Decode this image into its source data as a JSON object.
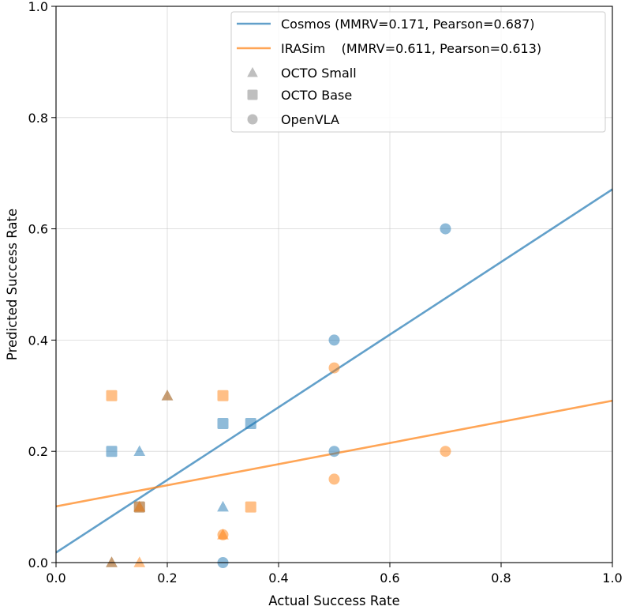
{
  "chart_data": {
    "type": "scatter",
    "title": "",
    "xlabel": "Actual Success Rate",
    "ylabel": "Predicted Success Rate",
    "xlim": [
      0.0,
      1.0
    ],
    "ylim": [
      0.0,
      1.0
    ],
    "xticks": [
      "0.0",
      "0.2",
      "0.4",
      "0.6",
      "0.8",
      "1.0"
    ],
    "yticks": [
      "0.0",
      "0.2",
      "0.4",
      "0.6",
      "0.8",
      "1.0"
    ],
    "grid": true,
    "legend_position": "top-right",
    "colors": {
      "cosmos": "#1f77b4",
      "irasim": "#ff7f0e",
      "marker_gray": "#7f7f7f"
    },
    "fit_lines": [
      {
        "name": "Cosmos",
        "label": "Cosmos (MMRV=0.171, Pearson=0.687)",
        "intercept": 0.018,
        "slope": 0.653
      },
      {
        "name": "IRASim",
        "label": "IRASim    (MMRV=0.611, Pearson=0.613)",
        "intercept": 0.101,
        "slope": 0.19
      }
    ],
    "marker_legend": [
      {
        "label": "OCTO Small",
        "marker": "triangle"
      },
      {
        "label": "OCTO Base",
        "marker": "square"
      },
      {
        "label": "OpenVLA",
        "marker": "circle"
      }
    ],
    "series": [
      {
        "name": "Cosmos",
        "model": "OCTO Small",
        "marker": "triangle",
        "x": [
          0.1,
          0.15,
          0.15,
          0.2,
          0.3
        ],
        "y": [
          0.0,
          0.2,
          0.1,
          0.3,
          0.1
        ]
      },
      {
        "name": "Cosmos",
        "model": "OCTO Base",
        "marker": "square",
        "x": [
          0.1,
          0.15,
          0.3,
          0.35
        ],
        "y": [
          0.2,
          0.1,
          0.25,
          0.25
        ]
      },
      {
        "name": "Cosmos",
        "model": "OpenVLA",
        "marker": "circle",
        "x": [
          0.3,
          0.5,
          0.5,
          0.7
        ],
        "y": [
          0.0,
          0.4,
          0.2,
          0.6
        ]
      },
      {
        "name": "IRASim",
        "model": "OCTO Small",
        "marker": "triangle",
        "x": [
          0.1,
          0.15,
          0.15,
          0.2,
          0.3
        ],
        "y": [
          0.0,
          0.0,
          0.1,
          0.3,
          0.05
        ]
      },
      {
        "name": "IRASim",
        "model": "OCTO Base",
        "marker": "square",
        "x": [
          0.1,
          0.15,
          0.3,
          0.35
        ],
        "y": [
          0.3,
          0.1,
          0.3,
          0.1
        ]
      },
      {
        "name": "IRASim",
        "model": "OpenVLA",
        "marker": "circle",
        "x": [
          0.3,
          0.5,
          0.5,
          0.7
        ],
        "y": [
          0.05,
          0.35,
          0.15,
          0.2
        ]
      }
    ]
  }
}
